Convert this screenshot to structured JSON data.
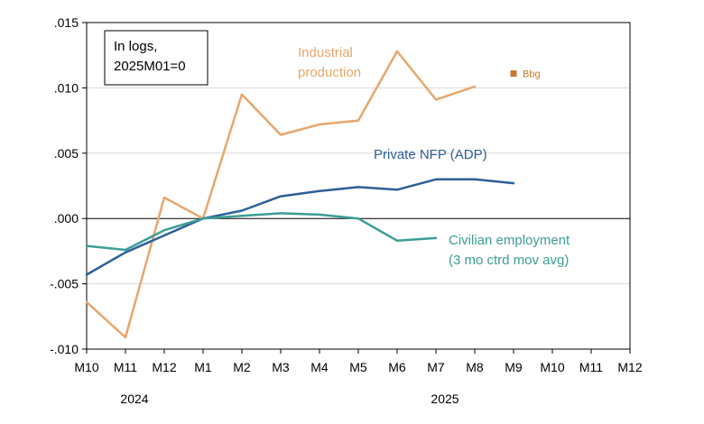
{
  "chart_data": {
    "type": "line",
    "x_ticks": [
      "M10",
      "M11",
      "M12",
      "M1",
      "M2",
      "M3",
      "M4",
      "M5",
      "M6",
      "M7",
      "M8",
      "M9",
      "M10",
      "M11",
      "M12"
    ],
    "years": [
      {
        "label": "2024",
        "index": 1
      },
      {
        "label": "2025",
        "index": 9
      }
    ],
    "ylim": [
      -0.01,
      0.015
    ],
    "y_ticks": [
      {
        "value": 0.015,
        "label": ".015"
      },
      {
        "value": 0.01,
        "label": ".010"
      },
      {
        "value": 0.005,
        "label": ".005"
      },
      {
        "value": 0.0,
        "label": ".000"
      },
      {
        "value": -0.005,
        "label": "-.005"
      },
      {
        "value": -0.01,
        "label": "-.010"
      }
    ],
    "grid": "horizontal",
    "note": [
      "In logs,",
      "2025M01=0"
    ],
    "series": [
      {
        "name": "Industrial production",
        "label_lines": [
          "Industrial",
          "production"
        ],
        "color": "#E8A66C",
        "values": [
          -0.0064,
          -0.0091,
          0.0016,
          0.0,
          0.0095,
          0.0064,
          0.0072,
          0.0075,
          0.0128,
          0.0091,
          0.0101
        ]
      },
      {
        "name": "Private NFP (ADP)",
        "label_lines": [
          "Private NFP (ADP)"
        ],
        "color": "#2D5F99",
        "values": [
          -0.0043,
          -0.0026,
          -0.0013,
          0.0,
          0.0006,
          0.0017,
          0.0021,
          0.0024,
          0.0022,
          0.003,
          0.003,
          0.0027
        ]
      },
      {
        "name": "Civilian employment (3 mo ctrd mov avg)",
        "label_lines": [
          "Civilian employment",
          "(3 mo ctrd mov avg)"
        ],
        "color": "#3B9E95",
        "values": [
          -0.0021,
          -0.0024,
          -0.0009,
          0.0,
          0.0002,
          0.0004,
          0.0003,
          0.0,
          -0.0017,
          -0.0015
        ]
      }
    ],
    "point": {
      "name": "Bbg",
      "x_index": 11,
      "value": 0.0111,
      "color": "#C8772A"
    }
  }
}
